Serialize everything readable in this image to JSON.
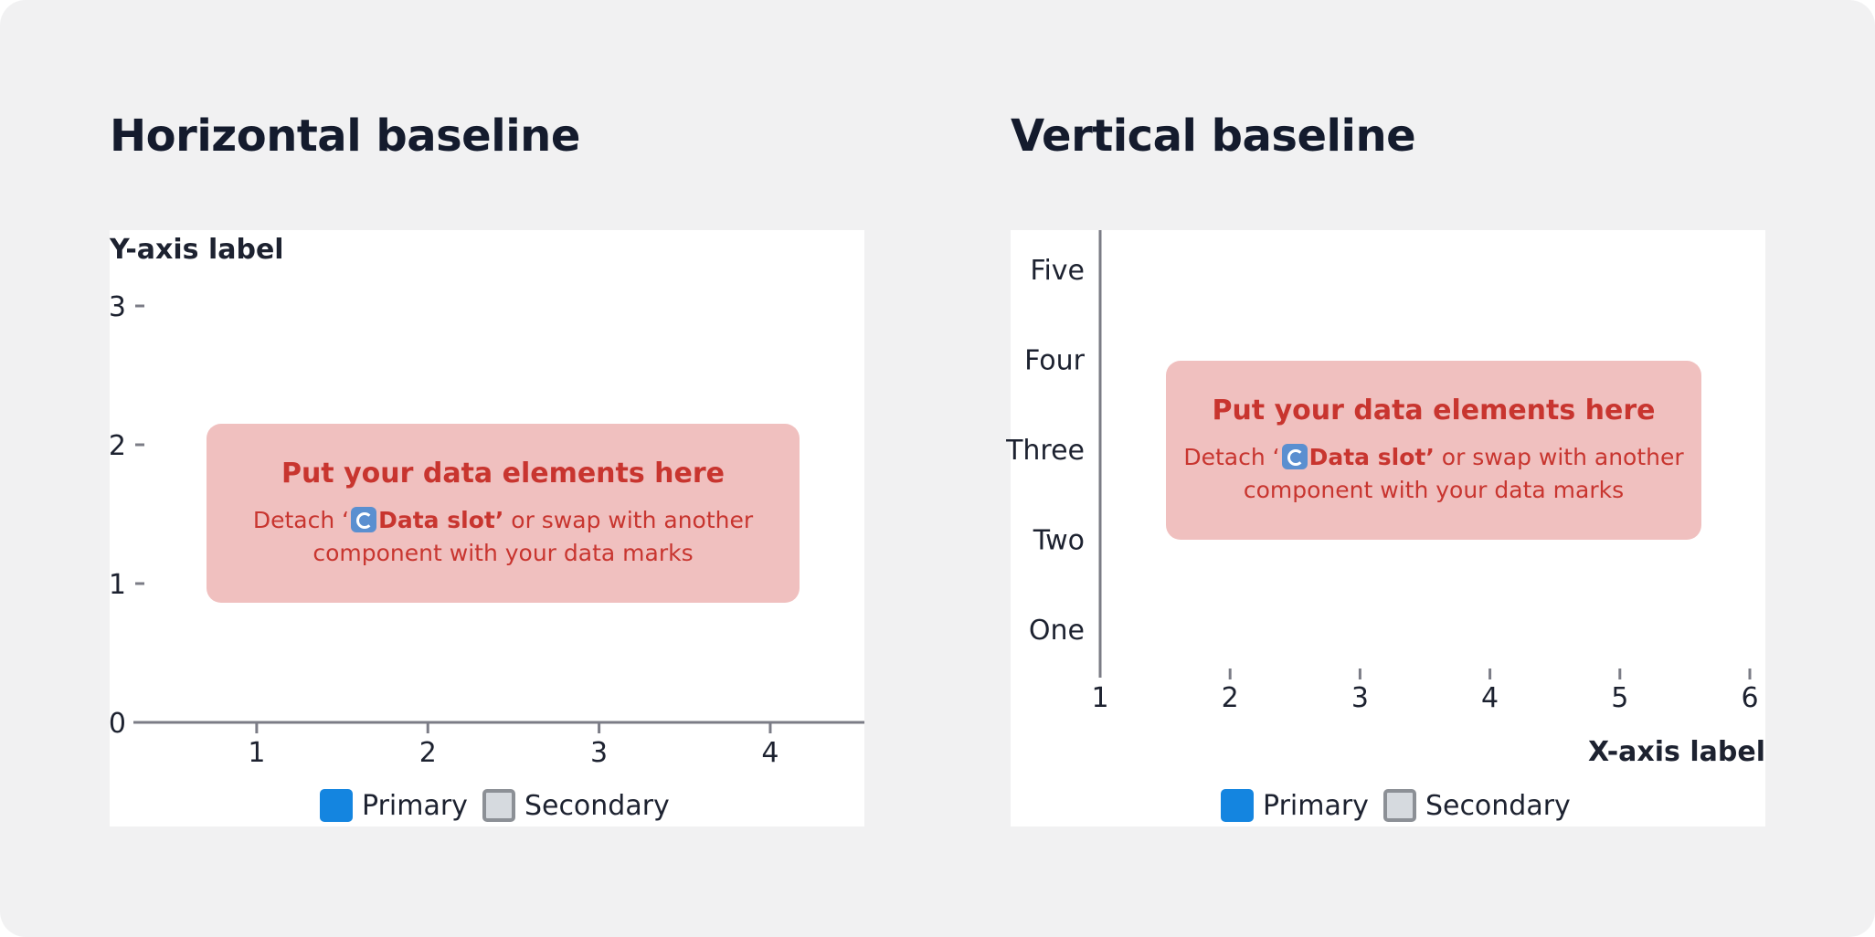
{
  "left": {
    "title": "Horizontal baseline",
    "placeholder": {
      "title": "Put your data elements here",
      "body_before": "Detach ‘",
      "body_bold": "Data slot’",
      "body_after": " or swap with another component with your data marks"
    },
    "legend": [
      {
        "label": "Primary",
        "kind": "primary"
      },
      {
        "label": "Secondary",
        "kind": "secondary"
      }
    ]
  },
  "right": {
    "title": "Vertical baseline",
    "placeholder": {
      "title": "Put your data elements here",
      "body_before": "Detach ‘",
      "body_bold": "Data slot’",
      "body_after": " or swap with another component with your data marks"
    },
    "legend": [
      {
        "label": "Primary",
        "kind": "primary"
      },
      {
        "label": "Secondary",
        "kind": "secondary"
      }
    ]
  },
  "colors": {
    "primary": "#1485e0",
    "secondary": "#d6dadf",
    "placeholder_bg": "#f0c0bf",
    "placeholder_text": "#c8352f",
    "axis": "#7b7c86"
  },
  "icons": {
    "swap": "swap-icon"
  },
  "chart_data": [
    {
      "type": "bar",
      "orientation": "vertical",
      "title": "Horizontal baseline",
      "ylabel": "Y-axis label",
      "xlabel": "",
      "x_ticks": [
        "1",
        "2",
        "3",
        "4"
      ],
      "y_ticks": [
        "0",
        "1",
        "2",
        "3"
      ],
      "xlim": [
        0.28,
        4.55
      ],
      "ylim": [
        0,
        3
      ],
      "baseline": "horizontal",
      "series": [],
      "legend": [
        "Primary",
        "Secondary"
      ],
      "legend_position": "bottom-center",
      "grid": false
    },
    {
      "type": "bar",
      "orientation": "horizontal",
      "title": "Vertical baseline",
      "xlabel": "X-axis label",
      "ylabel": "",
      "x_ticks": [
        "1",
        "2",
        "3",
        "4",
        "5",
        "6"
      ],
      "y_ticks": [
        "One",
        "Two",
        "Three",
        "Four",
        "Five"
      ],
      "xlim": [
        1,
        6
      ],
      "baseline": "vertical",
      "series": [],
      "legend": [
        "Primary",
        "Secondary"
      ],
      "legend_position": "bottom-center",
      "grid": false
    }
  ]
}
